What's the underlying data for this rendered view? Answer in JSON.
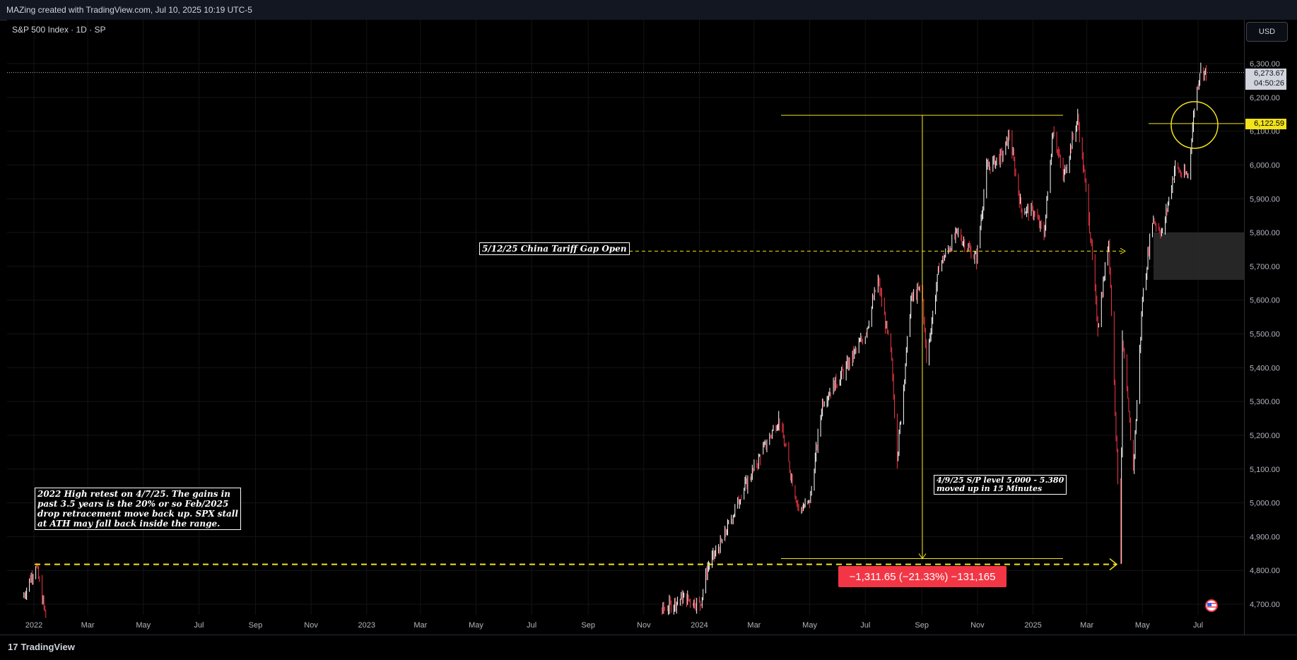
{
  "header": {
    "attribution": "MAZing created with TradingView.com, Jul 10, 2025 10:19 UTC-5"
  },
  "symbol": {
    "label": "S&P 500 Index · 1D · SP"
  },
  "currency_button": "USD",
  "footer": {
    "brand": "TradingView",
    "brand_glyph": "17"
  },
  "last_price": {
    "value": "6,273.67",
    "countdown": "04:50:26"
  },
  "level_price": "6,122.59",
  "annotations": {
    "gap_label": "5/12/25 China Tariff Gap Open",
    "sp_level_note": "4/9/25 S/P level 5,000 - 5.380\nmoved up in 15 Minutes",
    "high_retest_note": "2022 High retest on 4/7/25. The gains in\npast 3.5 years is the 20% or so Feb/2025\ndrop retracement move back up. SPX stall\nat ATH may fall back inside the range.",
    "measure_label": "−1,311.65 (−21.33%) −131,165"
  },
  "colors": {
    "background": "#000000",
    "up_candle": "#ffffff",
    "down_candle": "#f23645",
    "annotation_yellow": "#f2e31a",
    "gap_box": "#2a2a2a",
    "grid": "#141414"
  },
  "chart_data": {
    "type": "candlestick",
    "title": "S&P 500 Index · 1D · SP",
    "currency": "USD",
    "y_ticks": [
      "4,700.00",
      "4,800.00",
      "4,900.00",
      "5,000.00",
      "5,100.00",
      "5,200.00",
      "5,300.00",
      "5,400.00",
      "5,500.00",
      "5,600.00",
      "5,700.00",
      "5,800.00",
      "5,900.00",
      "6,000.00",
      "6,100.00",
      "6,200.00",
      "6,300.00"
    ],
    "x_ticks": [
      "2022",
      "Mar",
      "May",
      "Jul",
      "Sep",
      "Nov",
      "2023",
      "Mar",
      "May",
      "Jul",
      "Sep",
      "Nov",
      "2024",
      "Mar",
      "May",
      "Jul",
      "Sep",
      "Nov",
      "2025",
      "Mar",
      "May",
      "Jul"
    ],
    "ylim": [
      4660,
      6360
    ],
    "series": [
      {
        "name": "S&P 500 Index",
        "points": [
          [
            "2021-12-20",
            4720
          ],
          [
            "2022-01-03",
            4818
          ],
          [
            "2022-01-14",
            4662
          ],
          [
            "2023-11-20",
            4680
          ],
          [
            "2023-12-14",
            4720
          ],
          [
            "2024-01-02",
            4700
          ],
          [
            "2024-01-10",
            4810
          ],
          [
            "2024-01-25",
            4880
          ],
          [
            "2024-02-15",
            5020
          ],
          [
            "2024-03-10",
            5150
          ],
          [
            "2024-03-28",
            5250
          ],
          [
            "2024-04-19",
            4980
          ],
          [
            "2024-05-01",
            5000
          ],
          [
            "2024-05-15",
            5300
          ],
          [
            "2024-06-10",
            5400
          ],
          [
            "2024-07-01",
            5500
          ],
          [
            "2024-07-15",
            5660
          ],
          [
            "2024-07-30",
            5420
          ],
          [
            "2024-08-05",
            5130
          ],
          [
            "2024-08-20",
            5600
          ],
          [
            "2024-09-01",
            5640
          ],
          [
            "2024-09-06",
            5420
          ],
          [
            "2024-09-20",
            5700
          ],
          [
            "2024-10-10",
            5800
          ],
          [
            "2024-10-31",
            5720
          ],
          [
            "2024-11-11",
            5990
          ],
          [
            "2024-11-29",
            6030
          ],
          [
            "2024-12-06",
            6090
          ],
          [
            "2024-12-19",
            5870
          ],
          [
            "2025-01-02",
            5860
          ],
          [
            "2025-01-13",
            5790
          ],
          [
            "2025-01-23",
            6110
          ],
          [
            "2025-02-03",
            5960
          ],
          [
            "2025-02-19",
            6140
          ],
          [
            "2025-03-03",
            5850
          ],
          [
            "2025-03-13",
            5520
          ],
          [
            "2025-03-25",
            5780
          ],
          [
            "2025-04-04",
            5070
          ],
          [
            "2025-04-07",
            4835
          ],
          [
            "2025-04-09",
            5480
          ],
          [
            "2025-04-21",
            5100
          ],
          [
            "2025-05-01",
            5600
          ],
          [
            "2025-05-12",
            5840
          ],
          [
            "2025-05-23",
            5800
          ],
          [
            "2025-06-06",
            6000
          ],
          [
            "2025-06-13",
            5970
          ],
          [
            "2025-06-20",
            5970
          ],
          [
            "2025-06-27",
            6170
          ],
          [
            "2025-07-03",
            6280
          ],
          [
            "2025-07-10",
            6273
          ]
        ]
      }
    ],
    "last_value": 6273.67,
    "levels": {
      "high_2022": 4818,
      "tariff_gap": 5745,
      "highlight_level": 6122.59,
      "measure_top": 6147,
      "measure_bottom": 4835
    },
    "gap_zone": [
      5660,
      5800
    ],
    "measure": {
      "change": -1311.65,
      "percent": -21.33,
      "ticks": -131165
    }
  }
}
